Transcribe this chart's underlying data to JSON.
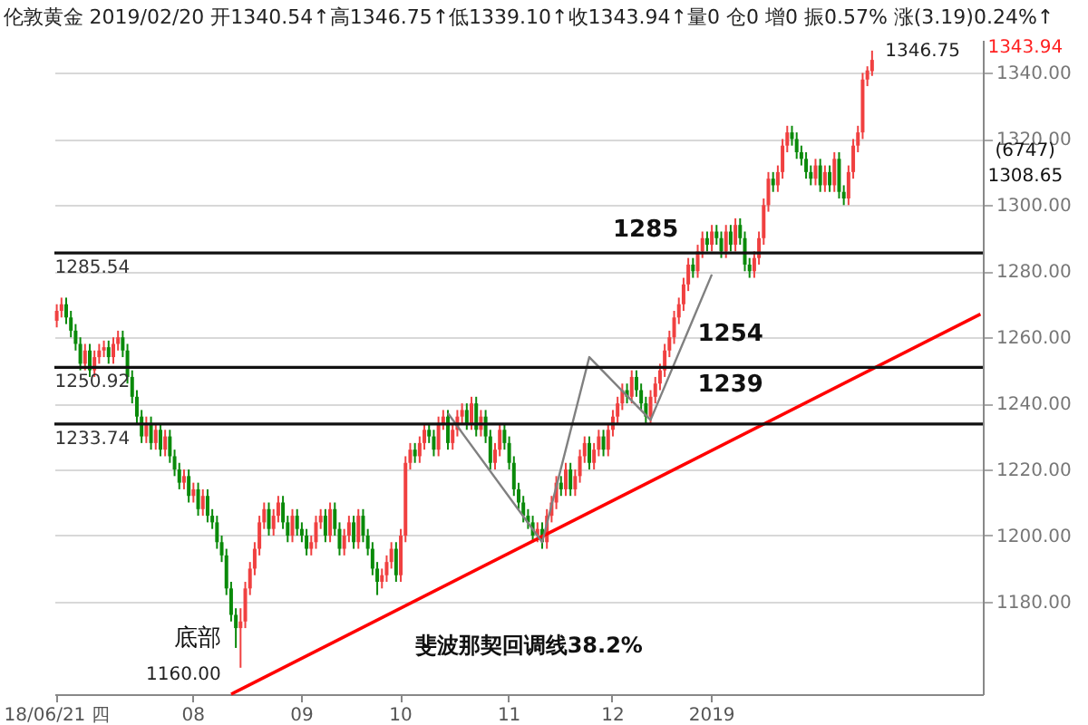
{
  "chart_data": {
    "type": "candlestick",
    "title": "伦敦黄金 2019/02/20 开1340.54↑高1346.75↑低1339.10↑收1343.94↑量0 仓0 增0 振0.57% 涨(3.19)0.24%↑",
    "categories": [
      "18/06/21 四",
      null,
      null,
      null,
      null,
      null,
      null,
      null,
      null,
      null,
      null,
      null,
      null,
      null,
      null,
      null,
      null,
      null,
      null,
      null,
      null,
      null,
      null,
      null,
      null,
      null,
      null,
      null,
      null,
      "08",
      null,
      null,
      null,
      null,
      null,
      null,
      null,
      null,
      null,
      null,
      null,
      null,
      null,
      null,
      null,
      null,
      null,
      null,
      null,
      null,
      null,
      null,
      "09",
      null,
      null,
      null,
      null,
      null,
      null,
      null,
      null,
      null,
      null,
      null,
      null,
      null,
      null,
      null,
      null,
      null,
      null,
      null,
      null,
      "10",
      null,
      null,
      null,
      null,
      null,
      null,
      null,
      null,
      null,
      null,
      null,
      null,
      null,
      null,
      null,
      null,
      null,
      null,
      null,
      null,
      null,
      null,
      "11",
      null,
      null,
      null,
      null,
      null,
      null,
      null,
      null,
      null,
      null,
      null,
      null,
      null,
      null,
      null,
      null,
      null,
      null,
      null,
      null,
      null,
      "12",
      null,
      null,
      null,
      null,
      null,
      null,
      null,
      null,
      null,
      null,
      null,
      null,
      null,
      null,
      null,
      null,
      null,
      null,
      null,
      null,
      "2019",
      null,
      null,
      null,
      null,
      null,
      null,
      null,
      null,
      null,
      null,
      null,
      null,
      null,
      null,
      null,
      null,
      null,
      null,
      null,
      null,
      null,
      null,
      null,
      null,
      null,
      null,
      null,
      null,
      null,
      null,
      null,
      null,
      null,
      null,
      null,
      null,
      null,
      null,
      null,
      null,
      null,
      null,
      null,
      null,
      null,
      null,
      null,
      null,
      null,
      null,
      null,
      null,
      null,
      null,
      null,
      null,
      null
    ],
    "ohlc": [
      [
        1265,
        1270,
        1263,
        1268
      ],
      [
        1268,
        1272,
        1266,
        1270
      ],
      [
        1270,
        1272,
        1264,
        1266
      ],
      [
        1266,
        1268,
        1260,
        1262
      ],
      [
        1262,
        1264,
        1256,
        1258
      ],
      [
        1258,
        1260,
        1250,
        1252
      ],
      [
        1252,
        1258,
        1250,
        1256
      ],
      [
        1256,
        1258,
        1248,
        1250
      ],
      [
        1250,
        1256,
        1248,
        1254
      ],
      [
        1254,
        1258,
        1252,
        1256
      ],
      [
        1256,
        1259,
        1254,
        1257
      ],
      [
        1257,
        1259,
        1252,
        1254
      ],
      [
        1254,
        1260,
        1252,
        1258
      ],
      [
        1258,
        1262,
        1256,
        1260
      ],
      [
        1260,
        1262,
        1254,
        1256
      ],
      [
        1256,
        1258,
        1246,
        1248
      ],
      [
        1248,
        1250,
        1240,
        1242
      ],
      [
        1242,
        1244,
        1234,
        1236
      ],
      [
        1236,
        1238,
        1228,
        1230
      ],
      [
        1230,
        1236,
        1228,
        1234
      ],
      [
        1234,
        1236,
        1226,
        1228
      ],
      [
        1228,
        1234,
        1226,
        1232
      ],
      [
        1232,
        1234,
        1224,
        1226
      ],
      [
        1226,
        1232,
        1224,
        1230
      ],
      [
        1230,
        1232,
        1222,
        1224
      ],
      [
        1224,
        1226,
        1218,
        1220
      ],
      [
        1220,
        1222,
        1214,
        1216
      ],
      [
        1216,
        1220,
        1214,
        1218
      ],
      [
        1218,
        1220,
        1210,
        1212
      ],
      [
        1212,
        1216,
        1210,
        1214
      ],
      [
        1214,
        1216,
        1206,
        1208
      ],
      [
        1208,
        1214,
        1206,
        1212
      ],
      [
        1212,
        1214,
        1204,
        1206
      ],
      [
        1206,
        1208,
        1202,
        1204
      ],
      [
        1204,
        1206,
        1196,
        1198
      ],
      [
        1198,
        1200,
        1192,
        1194
      ],
      [
        1194,
        1196,
        1182,
        1184
      ],
      [
        1184,
        1186,
        1174,
        1176
      ],
      [
        1176,
        1178,
        1166,
        1172
      ],
      [
        1172,
        1178,
        1160,
        1174
      ],
      [
        1174,
        1186,
        1172,
        1184
      ],
      [
        1184,
        1192,
        1182,
        1190
      ],
      [
        1190,
        1198,
        1188,
        1196
      ],
      [
        1196,
        1206,
        1194,
        1204
      ],
      [
        1204,
        1210,
        1202,
        1208
      ],
      [
        1208,
        1210,
        1200,
        1202
      ],
      [
        1202,
        1208,
        1200,
        1206
      ],
      [
        1206,
        1212,
        1204,
        1210
      ],
      [
        1210,
        1212,
        1202,
        1204
      ],
      [
        1204,
        1206,
        1198,
        1200
      ],
      [
        1200,
        1208,
        1198,
        1206
      ],
      [
        1206,
        1208,
        1200,
        1202
      ],
      [
        1202,
        1204,
        1198,
        1200
      ],
      [
        1200,
        1202,
        1194,
        1196
      ],
      [
        1196,
        1200,
        1194,
        1198
      ],
      [
        1198,
        1206,
        1196,
        1204
      ],
      [
        1204,
        1208,
        1202,
        1206
      ],
      [
        1206,
        1208,
        1198,
        1200
      ],
      [
        1200,
        1210,
        1198,
        1208
      ],
      [
        1208,
        1210,
        1200,
        1202
      ],
      [
        1202,
        1204,
        1194,
        1196
      ],
      [
        1196,
        1202,
        1194,
        1200
      ],
      [
        1200,
        1206,
        1198,
        1204
      ],
      [
        1204,
        1206,
        1196,
        1198
      ],
      [
        1198,
        1208,
        1196,
        1206
      ],
      [
        1206,
        1208,
        1198,
        1200
      ],
      [
        1200,
        1202,
        1194,
        1196
      ],
      [
        1196,
        1198,
        1188,
        1190
      ],
      [
        1190,
        1192,
        1182,
        1186
      ],
      [
        1186,
        1190,
        1184,
        1188
      ],
      [
        1188,
        1194,
        1186,
        1192
      ],
      [
        1192,
        1198,
        1190,
        1196
      ],
      [
        1196,
        1198,
        1186,
        1188
      ],
      [
        1188,
        1202,
        1186,
        1200
      ],
      [
        1200,
        1224,
        1198,
        1222
      ],
      [
        1222,
        1228,
        1220,
        1226
      ],
      [
        1226,
        1228,
        1222,
        1224
      ],
      [
        1224,
        1230,
        1222,
        1228
      ],
      [
        1228,
        1234,
        1226,
        1232
      ],
      [
        1232,
        1234,
        1228,
        1230
      ],
      [
        1230,
        1232,
        1224,
        1226
      ],
      [
        1226,
        1236,
        1224,
        1234
      ],
      [
        1234,
        1238,
        1232,
        1236
      ],
      [
        1236,
        1238,
        1226,
        1228
      ],
      [
        1228,
        1234,
        1226,
        1232
      ],
      [
        1232,
        1238,
        1230,
        1236
      ],
      [
        1236,
        1240,
        1234,
        1238
      ],
      [
        1238,
        1240,
        1232,
        1234
      ],
      [
        1234,
        1242,
        1232,
        1240
      ],
      [
        1240,
        1242,
        1230,
        1232
      ],
      [
        1232,
        1238,
        1230,
        1236
      ],
      [
        1236,
        1238,
        1228,
        1230
      ],
      [
        1230,
        1232,
        1220,
        1222
      ],
      [
        1222,
        1228,
        1220,
        1226
      ],
      [
        1226,
        1234,
        1224,
        1232
      ],
      [
        1232,
        1234,
        1226,
        1228
      ],
      [
        1228,
        1230,
        1220,
        1222
      ],
      [
        1222,
        1224,
        1212,
        1214
      ],
      [
        1214,
        1216,
        1208,
        1210
      ],
      [
        1210,
        1212,
        1204,
        1206
      ],
      [
        1206,
        1208,
        1202,
        1204
      ],
      [
        1204,
        1206,
        1198,
        1200
      ],
      [
        1200,
        1204,
        1198,
        1202
      ],
      [
        1202,
        1204,
        1196,
        1198
      ],
      [
        1198,
        1208,
        1196,
        1206
      ],
      [
        1206,
        1212,
        1204,
        1210
      ],
      [
        1210,
        1218,
        1208,
        1216
      ],
      [
        1216,
        1218,
        1212,
        1214
      ],
      [
        1214,
        1222,
        1212,
        1220
      ],
      [
        1220,
        1222,
        1212,
        1214
      ],
      [
        1214,
        1220,
        1212,
        1218
      ],
      [
        1218,
        1226,
        1216,
        1224
      ],
      [
        1224,
        1230,
        1222,
        1228
      ],
      [
        1228,
        1230,
        1220,
        1222
      ],
      [
        1222,
        1228,
        1220,
        1226
      ],
      [
        1226,
        1232,
        1224,
        1230
      ],
      [
        1230,
        1232,
        1224,
        1226
      ],
      [
        1226,
        1234,
        1224,
        1232
      ],
      [
        1232,
        1238,
        1230,
        1236
      ],
      [
        1236,
        1242,
        1234,
        1240
      ],
      [
        1240,
        1246,
        1238,
        1244
      ],
      [
        1244,
        1246,
        1240,
        1242
      ],
      [
        1242,
        1250,
        1240,
        1248
      ],
      [
        1248,
        1250,
        1242,
        1244
      ],
      [
        1244,
        1246,
        1238,
        1240
      ],
      [
        1240,
        1242,
        1234,
        1236
      ],
      [
        1236,
        1244,
        1234,
        1242
      ],
      [
        1242,
        1248,
        1240,
        1246
      ],
      [
        1246,
        1252,
        1244,
        1250
      ],
      [
        1250,
        1258,
        1248,
        1256
      ],
      [
        1256,
        1262,
        1254,
        1260
      ],
      [
        1260,
        1268,
        1258,
        1266
      ],
      [
        1266,
        1272,
        1264,
        1270
      ],
      [
        1270,
        1278,
        1268,
        1276
      ],
      [
        1276,
        1284,
        1274,
        1282
      ],
      [
        1282,
        1284,
        1278,
        1280
      ],
      [
        1280,
        1288,
        1278,
        1286
      ],
      [
        1286,
        1292,
        1284,
        1290
      ],
      [
        1290,
        1292,
        1286,
        1288
      ],
      [
        1288,
        1294,
        1286,
        1292
      ],
      [
        1292,
        1294,
        1288,
        1290
      ],
      [
        1290,
        1292,
        1284,
        1286
      ],
      [
        1286,
        1294,
        1284,
        1292
      ],
      [
        1292,
        1294,
        1286,
        1288
      ],
      [
        1288,
        1296,
        1286,
        1294
      ],
      [
        1294,
        1296,
        1288,
        1290
      ],
      [
        1290,
        1292,
        1280,
        1282
      ],
      [
        1282,
        1284,
        1278,
        1280
      ],
      [
        1280,
        1286,
        1278,
        1284
      ],
      [
        1284,
        1292,
        1282,
        1290
      ],
      [
        1290,
        1302,
        1288,
        1300
      ],
      [
        1300,
        1310,
        1298,
        1308
      ],
      [
        1308,
        1310,
        1304,
        1306
      ],
      [
        1306,
        1312,
        1304,
        1310
      ],
      [
        1310,
        1320,
        1308,
        1318
      ],
      [
        1318,
        1324,
        1316,
        1322
      ],
      [
        1322,
        1324,
        1318,
        1320
      ],
      [
        1320,
        1322,
        1314,
        1316
      ],
      [
        1316,
        1318,
        1312,
        1314
      ],
      [
        1314,
        1316,
        1308,
        1310
      ],
      [
        1310,
        1312,
        1306,
        1308
      ],
      [
        1308,
        1314,
        1306,
        1312
      ],
      [
        1312,
        1314,
        1304,
        1306
      ],
      [
        1306,
        1312,
        1304,
        1310
      ],
      [
        1310,
        1312,
        1304,
        1306
      ],
      [
        1306,
        1316,
        1304,
        1314
      ],
      [
        1314,
        1316,
        1302,
        1304
      ],
      [
        1304,
        1306,
        1300,
        1302
      ],
      [
        1302,
        1312,
        1300,
        1310
      ],
      [
        1310,
        1320,
        1308,
        1318
      ],
      [
        1318,
        1324,
        1316,
        1322
      ],
      [
        1322,
        1340,
        1320,
        1338
      ],
      [
        1338,
        1342,
        1336,
        1340.75
      ],
      [
        1340.54,
        1346.75,
        1339.1,
        1343.94
      ],
      null,
      null,
      null,
      null,
      null,
      null,
      null,
      null,
      null,
      null,
      null,
      null,
      null,
      null,
      null,
      null,
      null,
      null,
      null,
      null,
      null,
      null,
      null
    ],
    "series": [
      {
        "type": "line",
        "color": "#ff0000",
        "values": [
          null,
          null,
          null,
          null,
          null,
          null,
          null,
          null,
          null,
          null,
          null,
          null,
          null,
          null,
          null,
          null,
          null,
          null,
          null,
          null,
          null,
          null,
          null,
          null,
          null,
          null,
          null,
          null,
          null,
          null,
          null,
          null,
          null,
          null,
          null,
          null,
          null,
          1152,
          null,
          null,
          null,
          null,
          null,
          null,
          null,
          null,
          null,
          null,
          null,
          null,
          null,
          null,
          null,
          null,
          null,
          null,
          null,
          null,
          null,
          null,
          null,
          null,
          null,
          null,
          null,
          null,
          null,
          null,
          null,
          null,
          null,
          null,
          null,
          null,
          null,
          null,
          null,
          null,
          null,
          null,
          null,
          null,
          null,
          null,
          null,
          null,
          null,
          null,
          null,
          null,
          null,
          null,
          null,
          null,
          null,
          null,
          null,
          null,
          null,
          null,
          null,
          null,
          null,
          null,
          null,
          null,
          null,
          null,
          null,
          null,
          null,
          null,
          null,
          null,
          null,
          null,
          null,
          null,
          null,
          null,
          null,
          null,
          null,
          null,
          null,
          null,
          null,
          null,
          null,
          null,
          null,
          null,
          null,
          null,
          null,
          null,
          null,
          null,
          null,
          null,
          null,
          null,
          null,
          null,
          null,
          null,
          null,
          null,
          null,
          null,
          null,
          null,
          null,
          null,
          null,
          null,
          null,
          null,
          null,
          null,
          null,
          null,
          null,
          null,
          null,
          null,
          null,
          null,
          null,
          null,
          null,
          null,
          null,
          null,
          null,
          null,
          null,
          null,
          null,
          null,
          null,
          null,
          null,
          null,
          null,
          null,
          null,
          null,
          null,
          null,
          null,
          null,
          null,
          null,
          null,
          null,
          1267
        ]
      },
      {
        "type": "line",
        "color": "#808080",
        "values": [
          null,
          null,
          null,
          null,
          null,
          null,
          null,
          null,
          null,
          null,
          null,
          null,
          null,
          null,
          null,
          null,
          null,
          null,
          null,
          null,
          null,
          null,
          null,
          null,
          null,
          null,
          null,
          null,
          null,
          null,
          null,
          null,
          null,
          null,
          null,
          null,
          null,
          null,
          null,
          null,
          null,
          null,
          null,
          null,
          null,
          null,
          null,
          null,
          null,
          null,
          null,
          null,
          null,
          null,
          null,
          null,
          null,
          null,
          null,
          null,
          null,
          null,
          null,
          null,
          null,
          null,
          null,
          null,
          null,
          null,
          null,
          null,
          null,
          null,
          null,
          null,
          null,
          null,
          null,
          null,
          null,
          null,
          null,
          1237,
          null,
          null,
          null,
          null,
          null,
          null,
          null,
          null,
          null,
          null,
          null,
          null,
          null,
          null,
          null,
          null,
          null,
          null,
          null,
          1198,
          null,
          null,
          null,
          null,
          null,
          null,
          null,
          null,
          null,
          1254,
          null,
          null,
          null,
          null,
          null,
          null,
          null,
          null,
          null,
          null,
          null,
          null,
          1235,
          null,
          null,
          null,
          null,
          null,
          null,
          null,
          null,
          null,
          null,
          null,
          null,
          1279,
          null,
          null,
          null,
          null,
          null,
          null,
          null,
          null,
          null,
          null,
          null,
          null,
          null,
          null,
          null,
          null,
          null,
          null,
          null,
          null,
          null,
          null,
          null,
          null,
          null,
          null,
          null,
          null,
          null,
          null,
          null,
          null,
          null,
          null,
          null,
          null,
          null,
          null,
          null,
          null,
          null,
          null,
          null,
          null,
          null,
          null,
          null,
          null,
          null,
          null,
          null,
          null,
          null,
          null,
          null,
          null,
          null
        ]
      }
    ],
    "ylim": [
      1152,
      1350
    ],
    "yticks": [
      {
        "value": 1180,
        "label": "1180.00"
      },
      {
        "value": 1200,
        "label": "1200.00"
      },
      {
        "value": 1220,
        "label": "1220.00"
      },
      {
        "value": 1240,
        "label": "1240.00"
      },
      {
        "value": 1260,
        "label": "1260.00"
      },
      {
        "value": 1280,
        "label": "1280.00"
      },
      {
        "value": 1300,
        "label": "1300.00"
      },
      {
        "value": 1320,
        "label": "1320.00"
      },
      {
        "value": 1340,
        "label": "1340.00"
      }
    ],
    "grid": "y",
    "ref_lines": [
      {
        "axis": "y",
        "value": 1285.54,
        "label": "1285.54"
      },
      {
        "axis": "y",
        "value": 1250.92,
        "label": "1250.92"
      },
      {
        "axis": "y",
        "value": 1233.74,
        "label": "1233.74"
      }
    ],
    "annotations": [
      "1346.75",
      "1343.94",
      "(6747)",
      "1308.65",
      {
        "text": "1285",
        "y": 1285.54
      },
      "1254",
      "1239",
      "底部",
      "1160.00",
      "斐波那契回调线38.2%"
    ]
  }
}
